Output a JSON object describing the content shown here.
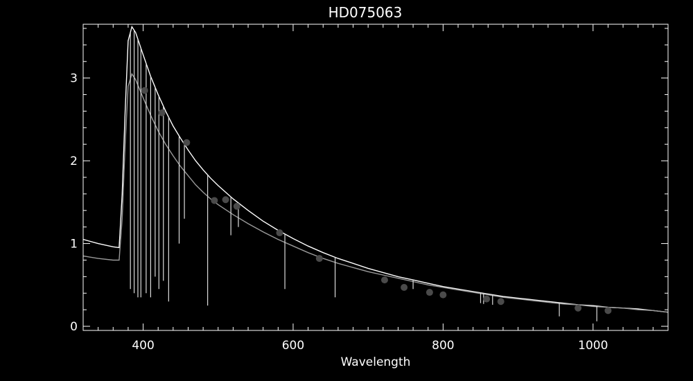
{
  "chart_data": {
    "type": "line",
    "title": "HD075063",
    "xlabel": "Wavelength",
    "ylabel": "",
    "xlim": [
      320,
      1100
    ],
    "ylim": [
      -0.05,
      3.65
    ],
    "grid": false,
    "legend": "none",
    "x_ticks": [
      400,
      600,
      800,
      1000
    ],
    "x_tick_labels": [
      "400",
      "600",
      "800",
      "1000"
    ],
    "y_ticks": [
      0,
      1,
      2,
      3
    ],
    "y_tick_labels": [
      "0",
      "1",
      "2",
      "3"
    ],
    "colors": {
      "background": "#000000",
      "frame": "#ffffff",
      "upper_spectrum": "#ffffff",
      "lower_spectrum": "#9a9a9a",
      "markers": "#4a4a4a"
    },
    "series": [
      {
        "style": "upper-spectrum",
        "x": [
          320,
          340,
          360,
          368,
          372,
          376,
          380,
          385,
          390,
          400,
          410,
          420,
          430,
          440,
          450,
          460,
          470,
          480,
          490,
          500,
          520,
          540,
          560,
          580,
          600,
          620,
          640,
          660,
          680,
          700,
          720,
          740,
          760,
          780,
          800,
          820,
          840,
          860,
          880,
          900,
          920,
          940,
          960,
          980,
          1000,
          1020,
          1040,
          1060,
          1080,
          1100
        ],
        "y": [
          1.05,
          1.0,
          0.96,
          0.95,
          1.6,
          2.6,
          3.45,
          3.62,
          3.55,
          3.28,
          3.02,
          2.8,
          2.6,
          2.42,
          2.27,
          2.13,
          2.0,
          1.89,
          1.79,
          1.7,
          1.54,
          1.4,
          1.27,
          1.16,
          1.06,
          0.97,
          0.89,
          0.82,
          0.76,
          0.7,
          0.65,
          0.6,
          0.56,
          0.52,
          0.48,
          0.45,
          0.42,
          0.39,
          0.36,
          0.34,
          0.32,
          0.3,
          0.28,
          0.26,
          0.25,
          0.23,
          0.22,
          0.21,
          0.19,
          0.17
        ]
      },
      {
        "style": "lower-spectrum",
        "x": [
          320,
          340,
          360,
          368,
          372,
          376,
          380,
          385,
          390,
          400,
          410,
          420,
          430,
          440,
          450,
          460,
          470,
          480,
          490,
          500,
          520,
          540,
          560,
          580,
          600,
          620,
          640,
          660,
          680,
          700,
          720,
          740,
          760,
          780,
          800,
          820,
          840,
          860,
          880,
          900,
          920,
          940,
          960,
          980,
          1000,
          1020,
          1040,
          1060,
          1080,
          1100
        ],
        "y": [
          0.85,
          0.82,
          0.8,
          0.8,
          1.3,
          2.2,
          2.9,
          3.05,
          2.98,
          2.76,
          2.55,
          2.36,
          2.2,
          2.06,
          1.93,
          1.82,
          1.71,
          1.62,
          1.54,
          1.47,
          1.35,
          1.24,
          1.14,
          1.05,
          0.97,
          0.89,
          0.82,
          0.76,
          0.71,
          0.66,
          0.62,
          0.58,
          0.54,
          0.5,
          0.47,
          0.44,
          0.41,
          0.38,
          0.35,
          0.33,
          0.31,
          0.29,
          0.27,
          0.26,
          0.24,
          0.23,
          0.22,
          0.2,
          0.19,
          0.17
        ]
      },
      {
        "style": "markers",
        "x": [
          402,
          425,
          458,
          495,
          510,
          525,
          582,
          635,
          722,
          748,
          782,
          800,
          858,
          877,
          980,
          1020
        ],
        "y": [
          2.85,
          2.58,
          2.22,
          1.52,
          1.53,
          1.45,
          1.13,
          0.82,
          0.56,
          0.47,
          0.41,
          0.38,
          0.33,
          0.3,
          0.22,
          0.19
        ]
      }
    ],
    "absorption_lines": [
      {
        "x": 383,
        "depth_to": 0.45
      },
      {
        "x": 388,
        "depth_to": 0.4
      },
      {
        "x": 393,
        "depth_to": 0.35
      },
      {
        "x": 397,
        "depth_to": 0.35
      },
      {
        "x": 404,
        "depth_to": 0.4
      },
      {
        "x": 410,
        "depth_to": 0.35
      },
      {
        "x": 416,
        "depth_to": 0.6
      },
      {
        "x": 421,
        "depth_to": 0.45
      },
      {
        "x": 427,
        "depth_to": 0.55
      },
      {
        "x": 434,
        "depth_to": 0.3
      },
      {
        "x": 448,
        "depth_to": 1.0
      },
      {
        "x": 455,
        "depth_to": 1.3
      },
      {
        "x": 486,
        "depth_to": 0.25
      },
      {
        "x": 517,
        "depth_to": 1.1
      },
      {
        "x": 527,
        "depth_to": 1.2
      },
      {
        "x": 589,
        "depth_to": 0.45
      },
      {
        "x": 656,
        "depth_to": 0.35
      },
      {
        "x": 760,
        "depth_to": 0.45
      },
      {
        "x": 850,
        "depth_to": 0.28
      },
      {
        "x": 854,
        "depth_to": 0.27
      },
      {
        "x": 866,
        "depth_to": 0.26
      },
      {
        "x": 955,
        "depth_to": 0.12
      },
      {
        "x": 1005,
        "depth_to": 0.06
      }
    ]
  }
}
